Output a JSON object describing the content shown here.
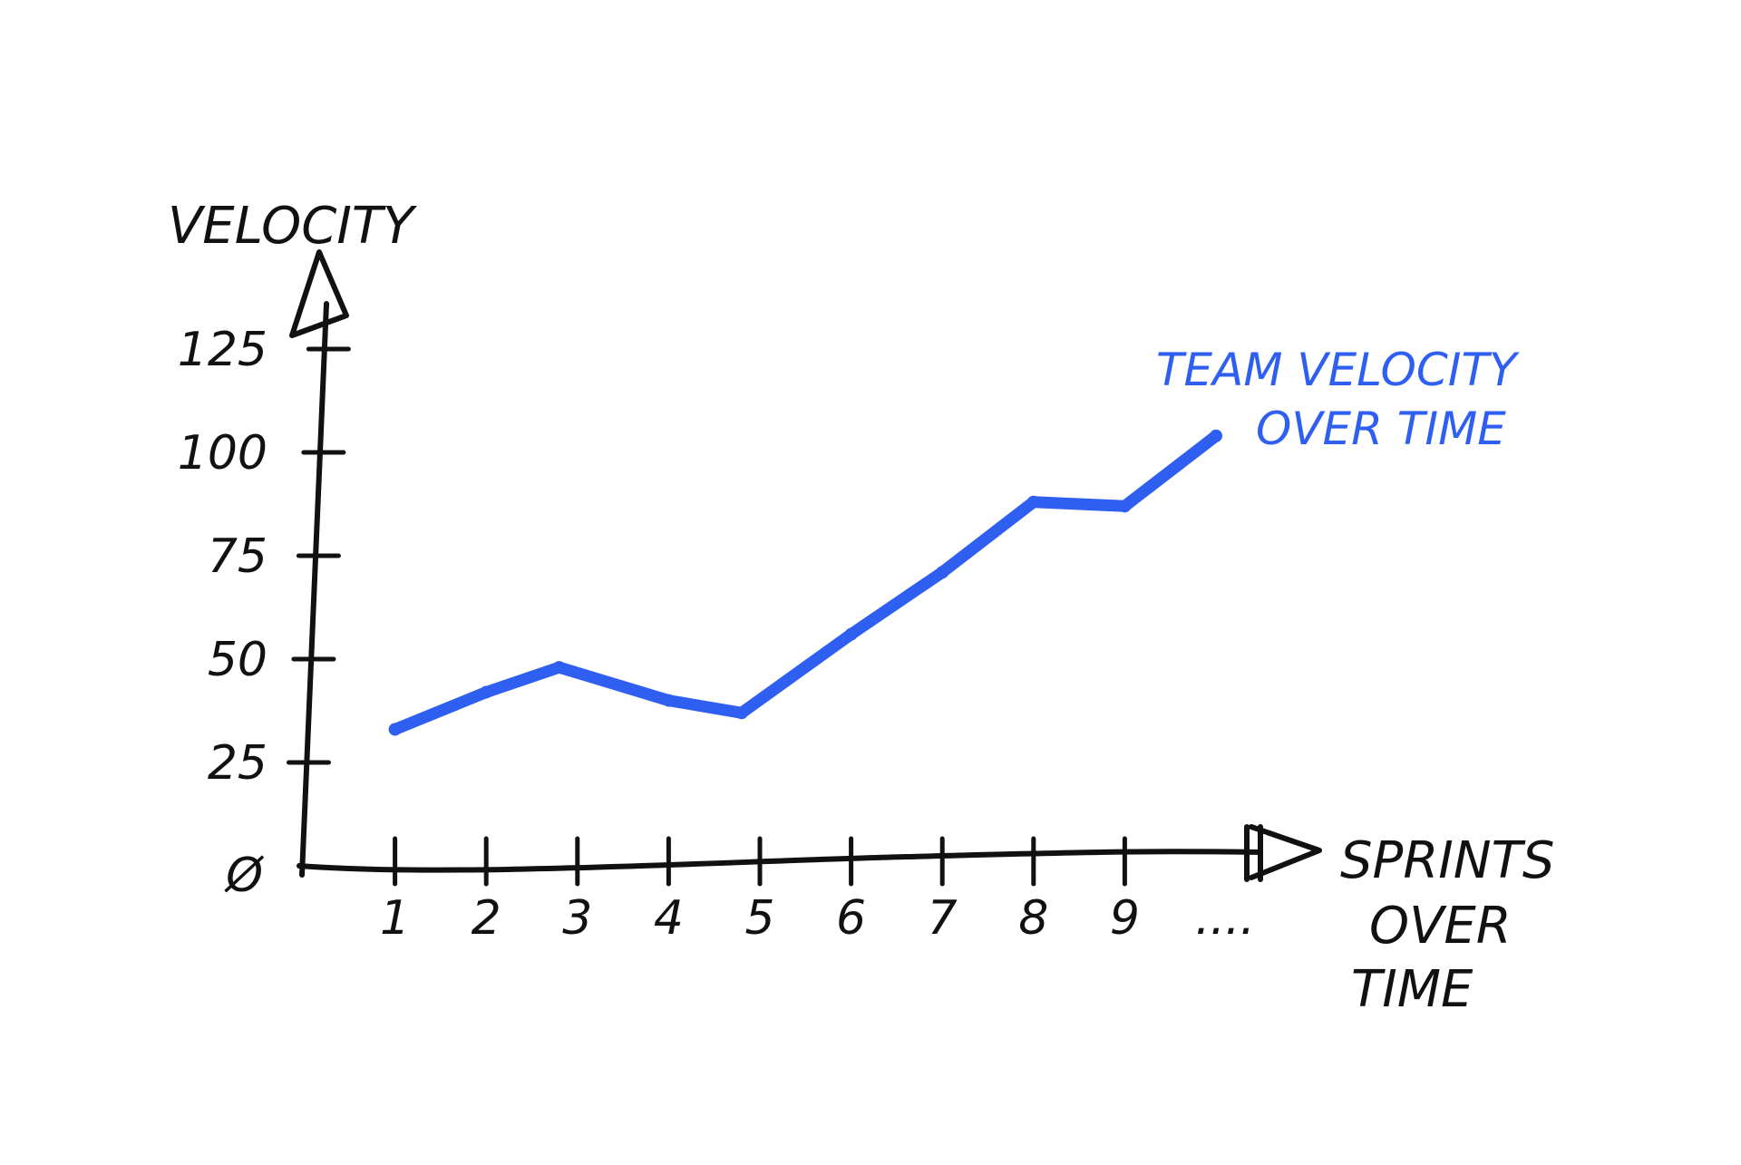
{
  "chart_data": {
    "type": "line",
    "ylabel": "VELOCITY",
    "xlabel_lines": [
      "SPRINTS",
      "OVER",
      "TIME"
    ],
    "x_tick_labels": [
      "1",
      "2",
      "3",
      "4",
      "5",
      "6",
      "7",
      "8",
      "9",
      "...."
    ],
    "y_tick_labels": [
      "Ø",
      "25",
      "50",
      "75",
      "100",
      "125"
    ],
    "y_tick_values": [
      0,
      25,
      50,
      75,
      100,
      125
    ],
    "ylim": [
      0,
      140
    ],
    "grid": false,
    "series": [
      {
        "name_lines": [
          "TEAM VELOCITY",
          "OVER TIME"
        ],
        "color": "#2f5ff0",
        "points": [
          {
            "x": 1,
            "y": 33
          },
          {
            "x": 2,
            "y": 42
          },
          {
            "x": 2.8,
            "y": 48
          },
          {
            "x": 4,
            "y": 40
          },
          {
            "x": 4.8,
            "y": 37
          },
          {
            "x": 6,
            "y": 56
          },
          {
            "x": 7,
            "y": 71
          },
          {
            "x": 8,
            "y": 88
          },
          {
            "x": 9,
            "y": 87
          },
          {
            "x": 10,
            "y": 104
          }
        ]
      }
    ]
  }
}
